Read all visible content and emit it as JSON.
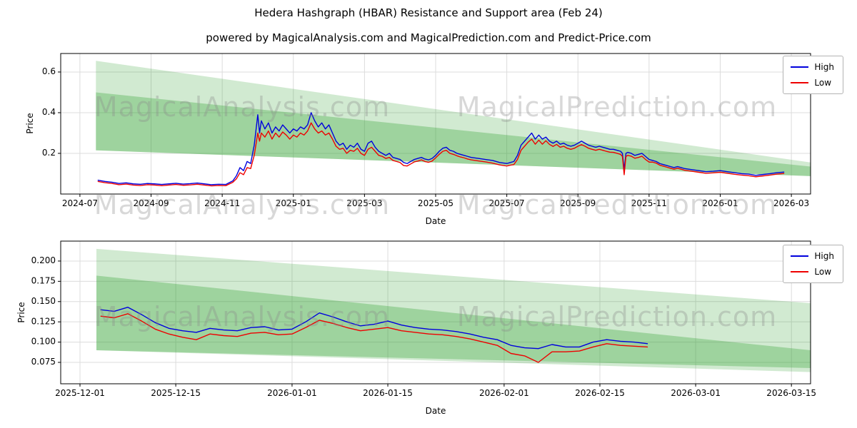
{
  "figure": {
    "title": "Hedera Hashgraph (HBAR) Resistance and Support area (Feb 24)",
    "subtitle": "powered by MagicalAnalysis.com and MagicalPrediction.com and Predict-Price.com",
    "watermark_left": "MagicalAnalysis.com",
    "watermark_right": "MagicalPrediction.com",
    "background": "#ffffff",
    "accent_green": "#2ca02c",
    "high_color": "#0000dd",
    "low_color": "#ee0000"
  },
  "chart_data": [
    {
      "type": "line",
      "xlabel": "Date",
      "ylabel": "Price",
      "grid": true,
      "legend": {
        "position": "upper right",
        "entries": [
          "High",
          "Low"
        ]
      },
      "xlim": [
        -0.54,
        20.54
      ],
      "ylim": [
        0,
        0.691
      ],
      "x_ticks": [
        {
          "pos": 0,
          "label": "2024-07"
        },
        {
          "pos": 2,
          "label": "2024-09"
        },
        {
          "pos": 4,
          "label": "2024-11"
        },
        {
          "pos": 6,
          "label": "2025-01"
        },
        {
          "pos": 8,
          "label": "2025-03"
        },
        {
          "pos": 10,
          "label": "2025-05"
        },
        {
          "pos": 12,
          "label": "2025-07"
        },
        {
          "pos": 14,
          "label": "2025-09"
        },
        {
          "pos": 16,
          "label": "2025-11"
        },
        {
          "pos": 18,
          "label": "2026-01"
        },
        {
          "pos": 20,
          "label": "2026-03"
        }
      ],
      "y_ticks": [
        {
          "pos": 0.2,
          "label": "0.2"
        },
        {
          "pos": 0.4,
          "label": "0.4"
        },
        {
          "pos": 0.6,
          "label": "0.6"
        }
      ],
      "bands": [
        {
          "name": "resistance-area",
          "color": "rgba(44,160,44,0.22)",
          "x": [
            0.45,
            20.54
          ],
          "top": [
            0.655,
            0.155
          ],
          "bottom": [
            0.215,
            0.088
          ]
        },
        {
          "name": "support-area",
          "color": "rgba(44,160,44,0.30)",
          "x": [
            0.45,
            20.54
          ],
          "top": [
            0.5,
            0.135
          ],
          "bottom": [
            0.215,
            0.088
          ]
        }
      ],
      "x": [
        0.5,
        0.7,
        0.9,
        1.1,
        1.3,
        1.5,
        1.7,
        1.9,
        2.1,
        2.3,
        2.5,
        2.7,
        2.9,
        3.1,
        3.3,
        3.5,
        3.7,
        3.9,
        4.1,
        4.3,
        4.4,
        4.5,
        4.6,
        4.7,
        4.8,
        4.9,
        5.0,
        5.05,
        5.1,
        5.2,
        5.3,
        5.4,
        5.5,
        5.6,
        5.7,
        5.8,
        5.9,
        6.0,
        6.1,
        6.2,
        6.3,
        6.4,
        6.5,
        6.6,
        6.7,
        6.8,
        6.9,
        7.0,
        7.1,
        7.2,
        7.3,
        7.4,
        7.5,
        7.6,
        7.7,
        7.8,
        7.9,
        8.0,
        8.1,
        8.2,
        8.3,
        8.4,
        8.5,
        8.6,
        8.7,
        8.8,
        8.9,
        9.0,
        9.1,
        9.2,
        9.3,
        9.4,
        9.5,
        9.6,
        9.7,
        9.8,
        9.9,
        10.0,
        10.1,
        10.2,
        10.3,
        10.4,
        10.5,
        10.6,
        10.7,
        10.8,
        10.9,
        11.0,
        11.2,
        11.4,
        11.6,
        11.8,
        12.0,
        12.1,
        12.2,
        12.3,
        12.4,
        12.5,
        12.6,
        12.7,
        12.8,
        12.9,
        13.0,
        13.1,
        13.2,
        13.3,
        13.4,
        13.5,
        13.6,
        13.7,
        13.8,
        13.9,
        14.0,
        14.1,
        14.2,
        14.3,
        14.4,
        14.5,
        14.6,
        14.7,
        14.8,
        14.9,
        15.0,
        15.1,
        15.2,
        15.25,
        15.3,
        15.35,
        15.4,
        15.5,
        15.6,
        15.7,
        15.8,
        15.9,
        16.0,
        16.1,
        16.2,
        16.3,
        16.4,
        16.5,
        16.6,
        16.7,
        16.8,
        16.9,
        17.0,
        17.2,
        17.4,
        17.6,
        17.8,
        18.0,
        18.2,
        18.4,
        18.6,
        18.8,
        19.0,
        19.2,
        19.4,
        19.6,
        19.8
      ],
      "series": [
        {
          "name": "High",
          "color": "#0000dd",
          "y": [
            0.068,
            0.062,
            0.058,
            0.052,
            0.055,
            0.05,
            0.048,
            0.052,
            0.05,
            0.047,
            0.05,
            0.053,
            0.049,
            0.051,
            0.054,
            0.05,
            0.046,
            0.048,
            0.047,
            0.065,
            0.09,
            0.13,
            0.115,
            0.16,
            0.15,
            0.24,
            0.39,
            0.3,
            0.36,
            0.32,
            0.35,
            0.3,
            0.33,
            0.31,
            0.34,
            0.32,
            0.3,
            0.32,
            0.31,
            0.33,
            0.32,
            0.34,
            0.4,
            0.36,
            0.33,
            0.35,
            0.32,
            0.34,
            0.3,
            0.26,
            0.24,
            0.25,
            0.22,
            0.24,
            0.23,
            0.25,
            0.22,
            0.21,
            0.25,
            0.26,
            0.23,
            0.21,
            0.2,
            0.19,
            0.2,
            0.18,
            0.175,
            0.17,
            0.155,
            0.15,
            0.16,
            0.17,
            0.175,
            0.18,
            0.172,
            0.168,
            0.175,
            0.19,
            0.21,
            0.225,
            0.23,
            0.215,
            0.21,
            0.2,
            0.195,
            0.19,
            0.185,
            0.18,
            0.175,
            0.17,
            0.165,
            0.155,
            0.15,
            0.155,
            0.16,
            0.19,
            0.24,
            0.26,
            0.28,
            0.3,
            0.27,
            0.29,
            0.27,
            0.28,
            0.26,
            0.25,
            0.26,
            0.245,
            0.25,
            0.24,
            0.235,
            0.24,
            0.25,
            0.26,
            0.25,
            0.24,
            0.235,
            0.23,
            0.235,
            0.23,
            0.225,
            0.22,
            0.22,
            0.215,
            0.21,
            0.2,
            0.12,
            0.2,
            0.205,
            0.2,
            0.19,
            0.195,
            0.2,
            0.185,
            0.17,
            0.165,
            0.16,
            0.15,
            0.145,
            0.14,
            0.135,
            0.13,
            0.135,
            0.13,
            0.125,
            0.12,
            0.115,
            0.11,
            0.112,
            0.115,
            0.11,
            0.105,
            0.1,
            0.098,
            0.092,
            0.096,
            0.1,
            0.105,
            0.108
          ]
        },
        {
          "name": "Low",
          "color": "#ee0000",
          "y": [
            0.062,
            0.056,
            0.052,
            0.046,
            0.049,
            0.044,
            0.042,
            0.046,
            0.044,
            0.041,
            0.044,
            0.047,
            0.043,
            0.045,
            0.048,
            0.044,
            0.04,
            0.042,
            0.041,
            0.058,
            0.075,
            0.105,
            0.095,
            0.13,
            0.125,
            0.19,
            0.3,
            0.26,
            0.3,
            0.28,
            0.31,
            0.27,
            0.3,
            0.28,
            0.305,
            0.29,
            0.27,
            0.29,
            0.28,
            0.3,
            0.29,
            0.31,
            0.35,
            0.32,
            0.3,
            0.31,
            0.29,
            0.3,
            0.27,
            0.235,
            0.22,
            0.225,
            0.2,
            0.215,
            0.21,
            0.225,
            0.2,
            0.19,
            0.22,
            0.23,
            0.21,
            0.19,
            0.185,
            0.175,
            0.18,
            0.165,
            0.16,
            0.155,
            0.14,
            0.138,
            0.148,
            0.158,
            0.162,
            0.168,
            0.16,
            0.156,
            0.162,
            0.178,
            0.195,
            0.21,
            0.215,
            0.2,
            0.195,
            0.188,
            0.182,
            0.178,
            0.172,
            0.168,
            0.163,
            0.158,
            0.152,
            0.143,
            0.138,
            0.142,
            0.145,
            0.17,
            0.215,
            0.235,
            0.255,
            0.27,
            0.245,
            0.265,
            0.245,
            0.262,
            0.244,
            0.234,
            0.244,
            0.23,
            0.235,
            0.225,
            0.22,
            0.225,
            0.235,
            0.243,
            0.235,
            0.225,
            0.22,
            0.215,
            0.22,
            0.215,
            0.21,
            0.206,
            0.205,
            0.2,
            0.195,
            0.185,
            0.095,
            0.185,
            0.19,
            0.186,
            0.176,
            0.18,
            0.186,
            0.17,
            0.157,
            0.157,
            0.152,
            0.142,
            0.137,
            0.132,
            0.127,
            0.122,
            0.127,
            0.122,
            0.117,
            0.112,
            0.107,
            0.102,
            0.104,
            0.107,
            0.102,
            0.097,
            0.093,
            0.09,
            0.085,
            0.089,
            0.093,
            0.098,
            0.101
          ]
        }
      ]
    },
    {
      "type": "line",
      "xlabel": "Date",
      "ylabel": "Price",
      "grid": true,
      "legend": {
        "position": "upper right",
        "entries": [
          "High",
          "Low"
        ]
      },
      "xlim": [
        -2.82,
        106.8
      ],
      "ylim": [
        0.0486,
        0.2246
      ],
      "x_ticks": [
        {
          "pos": 0,
          "label": "2025-12-01"
        },
        {
          "pos": 14,
          "label": "2025-12-15"
        },
        {
          "pos": 31,
          "label": "2026-01-01"
        },
        {
          "pos": 45,
          "label": "2026-01-15"
        },
        {
          "pos": 62,
          "label": "2026-02-01"
        },
        {
          "pos": 76,
          "label": "2026-02-15"
        },
        {
          "pos": 90,
          "label": "2026-03-01"
        },
        {
          "pos": 104,
          "label": "2026-03-15"
        }
      ],
      "y_ticks": [
        {
          "pos": 0.075,
          "label": "0.075"
        },
        {
          "pos": 0.1,
          "label": "0.100"
        },
        {
          "pos": 0.125,
          "label": "0.125"
        },
        {
          "pos": 0.15,
          "label": "0.150"
        },
        {
          "pos": 0.175,
          "label": "0.175"
        },
        {
          "pos": 0.2,
          "label": "0.200"
        }
      ],
      "bands": [
        {
          "name": "resistance-area",
          "color": "rgba(44,160,44,0.22)",
          "x": [
            2.4,
            106.8
          ],
          "top": [
            0.215,
            0.148
          ],
          "bottom": [
            0.09,
            0.063
          ]
        },
        {
          "name": "support-area",
          "color": "rgba(44,160,44,0.30)",
          "x": [
            2.4,
            106.8
          ],
          "top": [
            0.182,
            0.09
          ],
          "bottom": [
            0.09,
            0.068
          ]
        }
      ],
      "x": [
        3,
        5,
        7,
        9,
        11,
        13,
        15,
        17,
        19,
        21,
        23,
        25,
        27,
        29,
        31,
        33,
        35,
        37,
        39,
        41,
        43,
        45,
        47,
        49,
        51,
        53,
        55,
        57,
        59,
        61,
        63,
        65,
        67,
        69,
        71,
        73,
        75,
        77,
        79,
        81,
        83
      ],
      "series": [
        {
          "name": "High",
          "color": "#0000dd",
          "y": [
            0.14,
            0.138,
            0.143,
            0.134,
            0.124,
            0.117,
            0.114,
            0.112,
            0.117,
            0.115,
            0.114,
            0.118,
            0.119,
            0.115,
            0.116,
            0.125,
            0.136,
            0.131,
            0.125,
            0.12,
            0.122,
            0.126,
            0.121,
            0.118,
            0.116,
            0.115,
            0.113,
            0.11,
            0.106,
            0.103,
            0.096,
            0.093,
            0.092,
            0.097,
            0.094,
            0.094,
            0.1,
            0.103,
            0.101,
            0.1,
            0.098
          ]
        },
        {
          "name": "Low",
          "color": "#ee0000",
          "y": [
            0.132,
            0.13,
            0.135,
            0.126,
            0.116,
            0.11,
            0.106,
            0.103,
            0.11,
            0.108,
            0.107,
            0.111,
            0.112,
            0.109,
            0.11,
            0.118,
            0.127,
            0.123,
            0.118,
            0.114,
            0.116,
            0.118,
            0.114,
            0.112,
            0.11,
            0.109,
            0.107,
            0.104,
            0.1,
            0.096,
            0.086,
            0.083,
            0.075,
            0.088,
            0.088,
            0.089,
            0.094,
            0.098,
            0.096,
            0.095,
            0.094
          ]
        }
      ]
    }
  ]
}
